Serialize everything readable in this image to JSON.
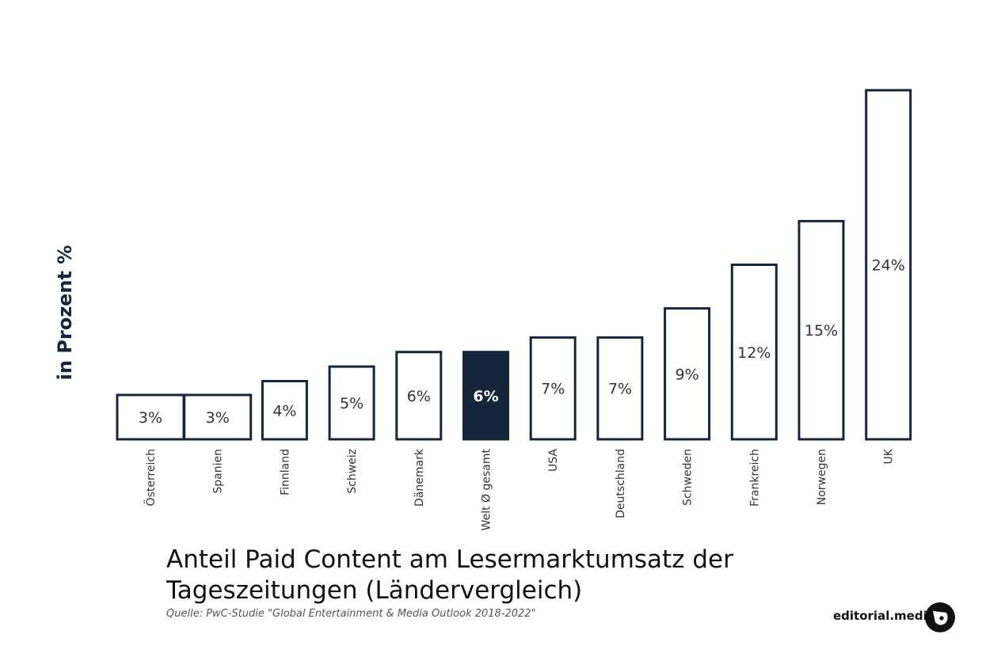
{
  "chart_data": {
    "type": "bar",
    "title": "Anteil Paid Content am Lesermarktumsatz der Tageszeitungen (Ländervergleich)",
    "source": "Quelle: PwC-Studie \"Global Entertainment & Media Outlook 2018-2022\"",
    "ylabel": "in Prozent %",
    "xlabel": "",
    "categories": [
      "Österreich",
      "Spanien",
      "Finnland",
      "Schweiz",
      "Dänemark",
      "Welt Ø gesamt",
      "USA",
      "Deutschland",
      "Schweden",
      "Frankreich",
      "Norwegen",
      "UK"
    ],
    "values": [
      3,
      3,
      4,
      5,
      6,
      6,
      7,
      7,
      9,
      12,
      15,
      24
    ],
    "value_labels": [
      "3%",
      "3%",
      "4%",
      "5%",
      "6%",
      "6%",
      "7%",
      "7%",
      "9%",
      "12%",
      "15%",
      "24%"
    ],
    "highlight_category": "Welt Ø gesamt",
    "grid": false,
    "legend": "none",
    "colors": {
      "bar_outline": "#16253a",
      "bar_fill": "#ffffff",
      "highlight_fill": "#16253a"
    }
  },
  "brand": {
    "name": "editorial.media",
    "logo_icon": "bubble-logo-icon"
  }
}
